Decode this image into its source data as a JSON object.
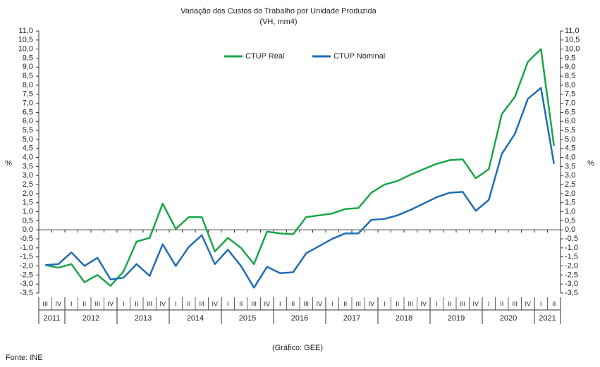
{
  "chart_data": {
    "type": "line",
    "title": "Variação dos Custos do Trabalho por Unidade Produzida",
    "subtitle": "(VH, mm4)",
    "y_label": "%",
    "y2_label": "%",
    "source": "Fonte: INE",
    "credit": "(Gráfico: GEE)",
    "categories": [
      "III",
      "IV",
      "I",
      "II",
      "III",
      "IV",
      "I",
      "II",
      "III",
      "IV",
      "I",
      "II",
      "III",
      "IV",
      "I",
      "II",
      "III",
      "IV",
      "I",
      "II",
      "III",
      "IV",
      "I",
      "II",
      "III",
      "IV",
      "I",
      "II",
      "III",
      "IV",
      "I",
      "II",
      "III",
      "IV",
      "I",
      "II",
      "III",
      "IV",
      "I",
      "II"
    ],
    "years": [
      "2011",
      "2012",
      "2013",
      "2014",
      "2015",
      "2016",
      "2017",
      "2018",
      "2019",
      "2020",
      "2021"
    ],
    "series": [
      {
        "name": "CTUP Real",
        "color": "#1aa64a",
        "values": [
          -1.95,
          -2.1,
          -1.9,
          -2.9,
          -2.5,
          -3.1,
          -2.3,
          -0.65,
          -0.45,
          1.45,
          0.05,
          0.7,
          0.7,
          -1.2,
          -0.45,
          -1.0,
          -1.9,
          -0.1,
          -0.2,
          -0.25,
          0.7,
          0.8,
          0.9,
          1.15,
          1.2,
          2.05,
          2.5,
          2.7,
          3.05,
          3.35,
          3.65,
          3.85,
          3.9,
          2.85,
          3.35,
          6.4,
          7.35,
          9.3,
          10.0,
          4.65
        ]
      },
      {
        "name": "CTUP Nominal",
        "color": "#1f6db5",
        "values": [
          -1.95,
          -1.9,
          -1.25,
          -2.0,
          -1.55,
          -2.75,
          -2.65,
          -1.9,
          -2.55,
          -0.8,
          -2.0,
          -0.95,
          -0.3,
          -1.9,
          -1.1,
          -2.0,
          -3.2,
          -2.05,
          -2.4,
          -2.35,
          -1.3,
          -0.9,
          -0.5,
          -0.2,
          -0.2,
          0.55,
          0.6,
          0.8,
          1.1,
          1.45,
          1.8,
          2.05,
          2.1,
          1.05,
          1.65,
          4.2,
          5.3,
          7.25,
          7.85,
          3.65
        ]
      }
    ],
    "ylim": [
      -3.5,
      11
    ],
    "yticks": [
      {
        "value": -3.5,
        "label": "-3,5"
      },
      {
        "value": -3,
        "label": "-3,0"
      },
      {
        "value": -2.5,
        "label": "-2,5"
      },
      {
        "value": -2,
        "label": "-2,0"
      },
      {
        "value": -1.5,
        "label": "-1,5"
      },
      {
        "value": -1,
        "label": "-1,0"
      },
      {
        "value": -0.5,
        "label": "-0,5"
      },
      {
        "value": 0,
        "label": "0,0"
      },
      {
        "value": 0.5,
        "label": "0,5"
      },
      {
        "value": 1,
        "label": "1,0"
      },
      {
        "value": 1.5,
        "label": "1,5"
      },
      {
        "value": 2,
        "label": "2,0"
      },
      {
        "value": 2.5,
        "label": "2,5"
      },
      {
        "value": 3,
        "label": "3,0"
      },
      {
        "value": 3.5,
        "label": "3,5"
      },
      {
        "value": 4,
        "label": "4,0"
      },
      {
        "value": 4.5,
        "label": "4,5"
      },
      {
        "value": 5,
        "label": "5,0"
      },
      {
        "value": 5.5,
        "label": "5,5"
      },
      {
        "value": 6,
        "label": "6,0"
      },
      {
        "value": 6.5,
        "label": "6,5"
      },
      {
        "value": 7,
        "label": "7,0"
      },
      {
        "value": 7.5,
        "label": "7,5"
      },
      {
        "value": 8,
        "label": "8,0"
      },
      {
        "value": 8.5,
        "label": "8,5"
      },
      {
        "value": 9,
        "label": "9,0"
      },
      {
        "value": 9.5,
        "label": "9,5"
      },
      {
        "value": 10,
        "label": "10,0"
      },
      {
        "value": 10.5,
        "label": "10,5"
      },
      {
        "value": 11,
        "label": "11,0"
      }
    ]
  }
}
